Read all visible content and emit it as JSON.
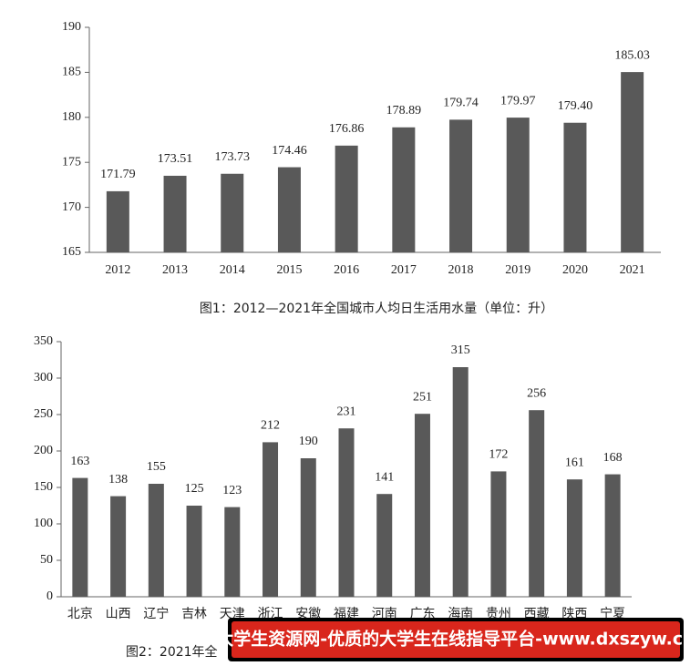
{
  "chart_data": [
    {
      "type": "bar",
      "title": "图1：2012—2021年全国城市人均日生活用水量（单位：升）",
      "categories": [
        "2012",
        "2013",
        "2014",
        "2015",
        "2016",
        "2017",
        "2018",
        "2019",
        "2020",
        "2021"
      ],
      "values": [
        171.79,
        173.51,
        173.73,
        174.46,
        176.86,
        178.89,
        179.74,
        179.97,
        179.4,
        185.03
      ],
      "value_labels": [
        "171.79",
        "173.51",
        "173.73",
        "174.46",
        "176.86",
        "178.89",
        "179.74",
        "179.97",
        "179.40",
        "185.03"
      ],
      "color": "#595959",
      "ylim": [
        165,
        190
      ],
      "yticks": [
        165,
        170,
        175,
        180,
        185,
        190
      ]
    },
    {
      "type": "bar",
      "title": "图2：2021年全",
      "categories": [
        "北京",
        "山西",
        "辽宁",
        "吉林",
        "天津",
        "浙江",
        "安徽",
        "福建",
        "河南",
        "广东",
        "海南",
        "贵州",
        "西藏",
        "陕西",
        "宁夏"
      ],
      "values": [
        163,
        138,
        155,
        125,
        123,
        212,
        190,
        231,
        141,
        251,
        315,
        172,
        256,
        161,
        168
      ],
      "color": "#595959",
      "ylim": [
        0,
        350
      ],
      "yticks": [
        0,
        50,
        100,
        150,
        200,
        250,
        300,
        350
      ]
    }
  ],
  "watermark": "大学生资源网-优质的大学生在线指导平台-www.dxszyw.cn"
}
